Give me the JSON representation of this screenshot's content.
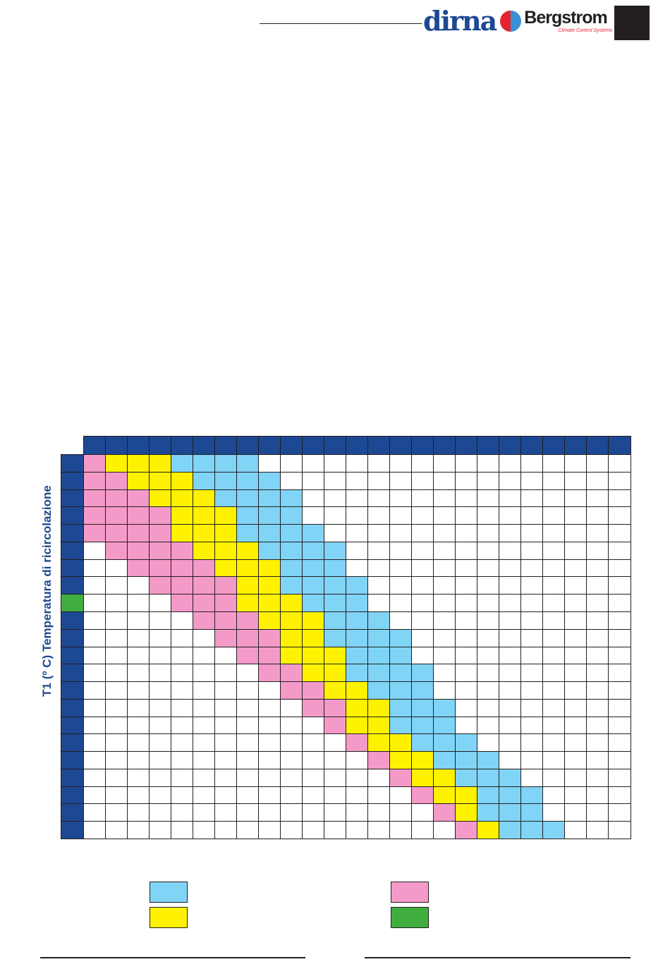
{
  "header": {
    "logo_text": "dirna Bergstrom",
    "logo_brand_1": "dirna",
    "logo_brand_2": "Bergstrom",
    "logo_tagline": "Climate Control Systems"
  },
  "colors": {
    "header_blue": "#1d4893",
    "P": "#f49ac9",
    "Y": "#fff200",
    "B": "#80d4f6",
    "W": "#ffffff",
    "G": "#3fae3f",
    "line": "#231f20"
  },
  "chart_data": {
    "type": "table",
    "ylabel": "T1 (º C) Temperatura di ricircolazione",
    "columns": 25,
    "highlighted_row": 8,
    "legend_colors": [
      "B",
      "Y",
      "P",
      "G"
    ],
    "rows": [
      "PYYYBBBBWWWWWWWWWWWWWWWWW",
      "PPYYYBBBBWWWWWWWWWWWWWWWW",
      "PPPYYYBBBBWWWWWWWWWWWWWWW",
      "PPPPYYYBBBWWWWWWWWWWWWWWW",
      "PPPPYYYBBBBWWWWWWWWWWWWWW",
      "WPPPPYYYBBBBWWWWWWWWWWWWW",
      "WWPPPPYYYBBBWWWWWWWWWWWWW",
      "WWWPPPPYYBBBBWWWWWWWWWWWW",
      "WWWWPPPYYYBBBWWWWWWWWWWWW",
      "WWWWWPPPYYYBBBWWWWWWWWWWW",
      "WWWWWWPPPYYBBBBWWWWWWWWWW",
      "WWWWWWWPPYYYBBBWWWWWWWWWW",
      "WWWWWWWWPPYYBBBBWWWWWWWWW",
      "WWWWWWWWWPPYYBBBWWWWWWWWW",
      "WWWWWWWWWWPPYYBBBWWWWWWWW",
      "WWWWWWWWWWWPYYBBBWWWWWWWW",
      "WWWWWWWWWWWWPYYBBBWWWWWWW",
      "WWWWWWWWWWWWWPYYBBBWWWWWW",
      "WWWWWWWWWWWWWWPYYBBBWWWWW",
      "WWWWWWWWWWWWWWWPYYBBBWWWW",
      "WWWWWWWWWWWWWWWWPYBBBWWWW",
      "WWWWWWWWWWWWWWWWWPYBBBWWW"
    ]
  }
}
